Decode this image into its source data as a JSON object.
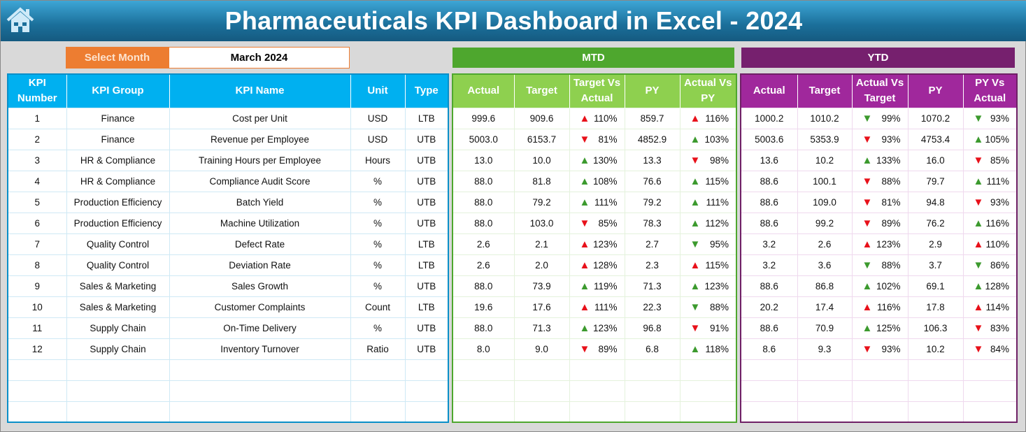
{
  "title": "Pharmaceuticals KPI Dashboard in Excel - 2024",
  "select_month": {
    "label": "Select Month",
    "value": "March 2024"
  },
  "colors": {
    "title": "#1b6f9a",
    "select": "#ed7d31",
    "kpi_header": "#00b0f0",
    "mtd": "#4ea72e",
    "mtd_header": "#8ed04f",
    "ytd": "#76206e",
    "ytd_header": "#a0289c",
    "arrow_good": "#3c9a2e",
    "arrow_bad": "#e8111a"
  },
  "kpi_table": {
    "headers": [
      "KPI Number",
      "KPI Group",
      "KPI Name",
      "Unit",
      "Type"
    ],
    "rows": [
      [
        "1",
        "Finance",
        "Cost per Unit",
        "USD",
        "LTB"
      ],
      [
        "2",
        "Finance",
        "Revenue per Employee",
        "USD",
        "UTB"
      ],
      [
        "3",
        "HR & Compliance",
        "Training Hours per Employee",
        "Hours",
        "UTB"
      ],
      [
        "4",
        "HR & Compliance",
        "Compliance Audit Score",
        "%",
        "UTB"
      ],
      [
        "5",
        "Production Efficiency",
        "Batch Yield",
        "%",
        "UTB"
      ],
      [
        "6",
        "Production Efficiency",
        "Machine Utilization",
        "%",
        "UTB"
      ],
      [
        "7",
        "Quality Control",
        "Defect Rate",
        "%",
        "LTB"
      ],
      [
        "8",
        "Quality Control",
        "Deviation Rate",
        "%",
        "LTB"
      ],
      [
        "9",
        "Sales & Marketing",
        "Sales Growth",
        "%",
        "UTB"
      ],
      [
        "10",
        "Sales & Marketing",
        "Customer Complaints",
        "Count",
        "LTB"
      ],
      [
        "11",
        "Supply Chain",
        "On-Time Delivery",
        "%",
        "UTB"
      ],
      [
        "12",
        "Supply Chain",
        "Inventory Turnover",
        "Ratio",
        "UTB"
      ]
    ]
  },
  "mtd": {
    "title": "MTD",
    "headers": [
      "Actual",
      "Target",
      "Target Vs Actual",
      "PY",
      "Actual Vs PY"
    ],
    "rows": [
      [
        "999.6",
        "909.6",
        "110%",
        "up-red",
        "859.7",
        "116%",
        "up-red"
      ],
      [
        "5003.0",
        "6153.7",
        "81%",
        "down-red",
        "4852.9",
        "103%",
        "up-green"
      ],
      [
        "13.0",
        "10.0",
        "130%",
        "up-green",
        "13.3",
        "98%",
        "down-red"
      ],
      [
        "88.0",
        "81.8",
        "108%",
        "up-green",
        "76.6",
        "115%",
        "up-green"
      ],
      [
        "88.0",
        "79.2",
        "111%",
        "up-green",
        "79.2",
        "111%",
        "up-green"
      ],
      [
        "88.0",
        "103.0",
        "85%",
        "down-red",
        "78.3",
        "112%",
        "up-green"
      ],
      [
        "2.6",
        "2.1",
        "123%",
        "up-red",
        "2.7",
        "95%",
        "down-green"
      ],
      [
        "2.6",
        "2.0",
        "128%",
        "up-red",
        "2.3",
        "115%",
        "up-red"
      ],
      [
        "88.0",
        "73.9",
        "119%",
        "up-green",
        "71.3",
        "123%",
        "up-green"
      ],
      [
        "19.6",
        "17.6",
        "111%",
        "up-red",
        "22.3",
        "88%",
        "down-green"
      ],
      [
        "88.0",
        "71.3",
        "123%",
        "up-green",
        "96.8",
        "91%",
        "down-red"
      ],
      [
        "8.0",
        "9.0",
        "89%",
        "down-red",
        "6.8",
        "118%",
        "up-green"
      ]
    ]
  },
  "ytd": {
    "title": "YTD",
    "headers": [
      "Actual",
      "Target",
      "Actual Vs Target",
      "PY",
      "PY Vs Actual"
    ],
    "rows": [
      [
        "1000.2",
        "1010.2",
        "99%",
        "down-green",
        "1070.2",
        "93%",
        "down-green"
      ],
      [
        "5003.6",
        "5353.9",
        "93%",
        "down-red",
        "4753.4",
        "105%",
        "up-green"
      ],
      [
        "13.6",
        "10.2",
        "133%",
        "up-green",
        "16.0",
        "85%",
        "down-red"
      ],
      [
        "88.6",
        "100.1",
        "88%",
        "down-red",
        "79.7",
        "111%",
        "up-green"
      ],
      [
        "88.6",
        "109.0",
        "81%",
        "down-red",
        "94.8",
        "93%",
        "down-red"
      ],
      [
        "88.6",
        "99.2",
        "89%",
        "down-red",
        "76.2",
        "116%",
        "up-green"
      ],
      [
        "3.2",
        "2.6",
        "123%",
        "up-red",
        "2.9",
        "110%",
        "up-red"
      ],
      [
        "3.2",
        "3.6",
        "88%",
        "down-green",
        "3.7",
        "86%",
        "down-green"
      ],
      [
        "88.6",
        "86.8",
        "102%",
        "up-green",
        "69.1",
        "128%",
        "up-green"
      ],
      [
        "20.2",
        "17.4",
        "116%",
        "up-red",
        "17.8",
        "114%",
        "up-red"
      ],
      [
        "88.6",
        "70.9",
        "125%",
        "up-green",
        "106.3",
        "83%",
        "down-red"
      ],
      [
        "8.6",
        "9.3",
        "93%",
        "down-red",
        "10.2",
        "84%",
        "down-red"
      ]
    ]
  }
}
